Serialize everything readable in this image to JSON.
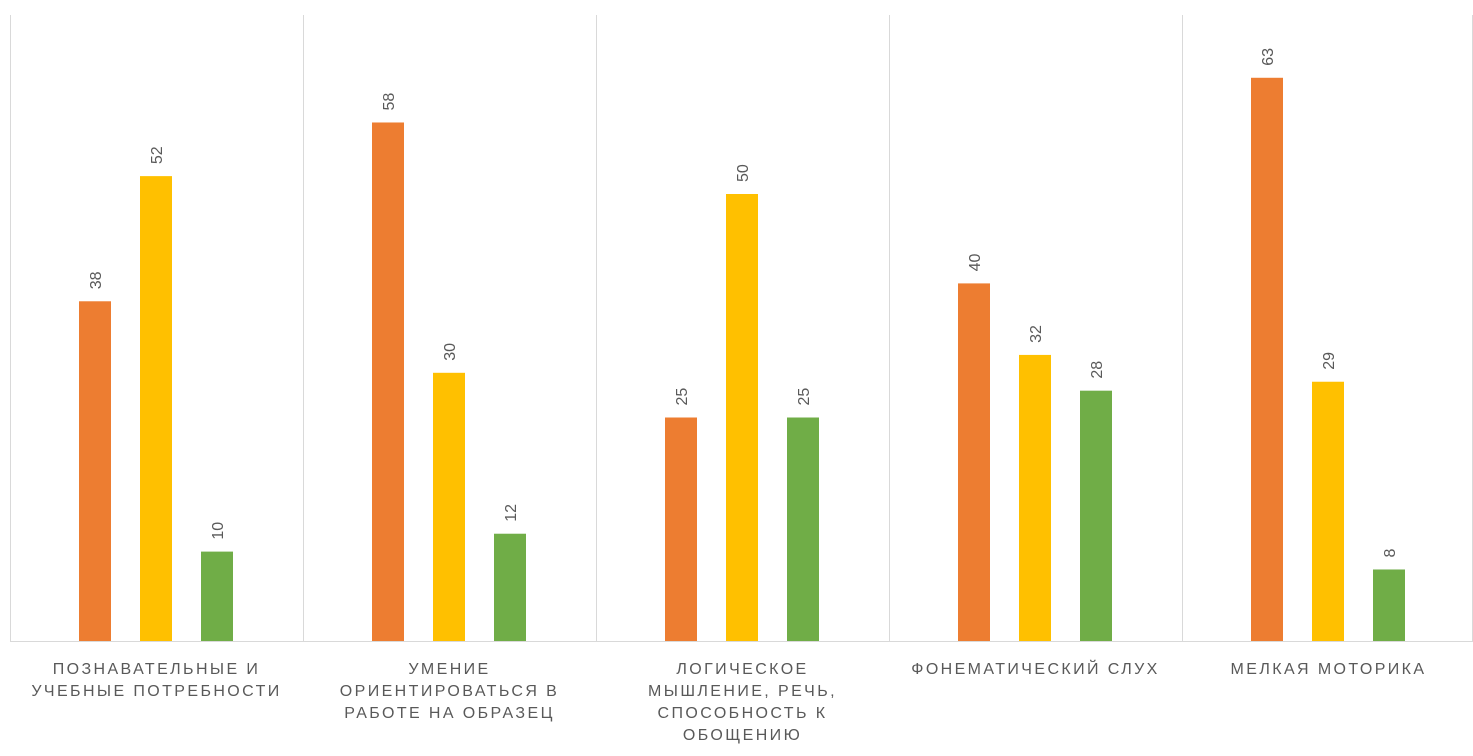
{
  "chart_data": {
    "type": "bar",
    "title": "",
    "xlabel": "",
    "ylabel": "",
    "ylim": [
      0,
      70
    ],
    "grid": false,
    "legend": "none",
    "categories": [
      [
        "ПОЗНАВАТЕЛЬНЫЕ И",
        "УЧЕБНЫЕ ПОТРЕБНОСТИ"
      ],
      [
        "УМЕНИЕ",
        "ОРИЕНТИРОВАТЬСЯ В",
        "РАБОТЕ НА ОБРАЗЕЦ"
      ],
      [
        "ЛОГИЧЕСКОЕ",
        "МЫШЛЕНИЕ, РЕЧЬ,",
        "СПОСОБНОСТЬ К",
        "ОБОЩЕНИЮ"
      ],
      [
        "ФОНЕМАТИЧЕСКИЙ СЛУХ"
      ],
      [
        "МЕЛКАЯ МОТОРИКА"
      ]
    ],
    "series": [
      {
        "color": "#ED7D31",
        "values": [
          38,
          58,
          25,
          40,
          63
        ]
      },
      {
        "color": "#FFC000",
        "values": [
          52,
          30,
          50,
          32,
          29
        ]
      },
      {
        "color": "#70AD47",
        "values": [
          10,
          12,
          25,
          28,
          8
        ]
      }
    ]
  }
}
